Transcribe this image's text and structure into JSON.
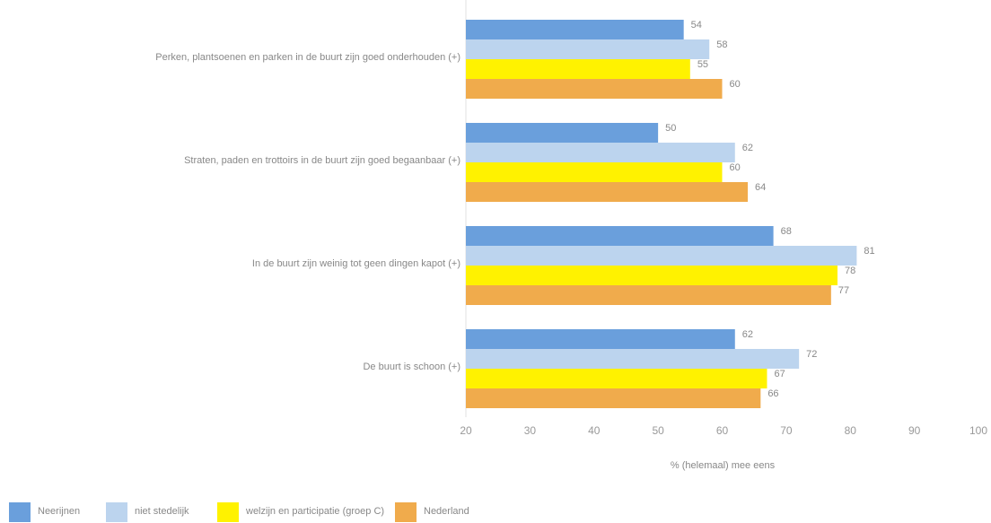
{
  "chart_data": {
    "type": "bar",
    "orientation": "horizontal",
    "categories": [
      "Perken, plantsoenen en parken in de buurt zijn goed onderhouden (+)",
      "Straten, paden en trottoirs in de buurt zijn goed begaanbaar (+)",
      "In de buurt zijn weinig tot geen dingen kapot (+)",
      "De buurt is schoon (+)"
    ],
    "series": [
      {
        "name": "Neerijnen",
        "color": "#6a9fdc",
        "values": [
          54,
          50,
          68,
          62
        ]
      },
      {
        "name": "niet stedelijk",
        "color": "#bcd4ee",
        "values": [
          58,
          62,
          81,
          72
        ]
      },
      {
        "name": "welzijn en participatie (groep C)",
        "color": "#fff200",
        "values": [
          55,
          60,
          78,
          67
        ]
      },
      {
        "name": "Nederland",
        "color": "#f0ab4c",
        "values": [
          60,
          64,
          77,
          66
        ]
      }
    ],
    "xlabel": "% (helemaal) mee eens",
    "xlim": [
      20,
      100
    ],
    "xticks": [
      20,
      30,
      40,
      50,
      60,
      70,
      80,
      90,
      100
    ],
    "legend": "bottom-left"
  }
}
